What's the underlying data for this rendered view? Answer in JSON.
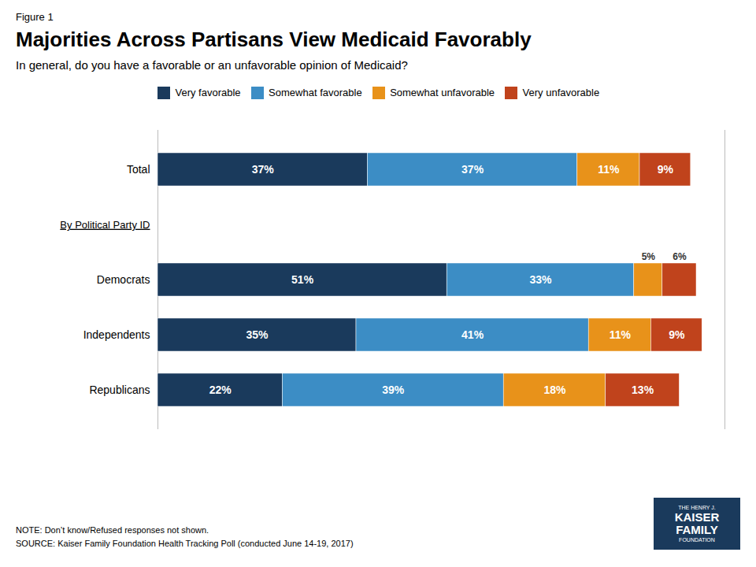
{
  "chart_data": {
    "type": "bar",
    "orientation": "horizontal",
    "stacked": true,
    "data_labels": true,
    "tick_labels": "y",
    "legend": "top",
    "figure_label": "Figure 1",
    "title": "Majorities Across Partisans View Medicaid Favorably",
    "subtitle": "In general, do you have a favorable or an unfavorable opinion of Medicaid?",
    "section_label": "By Political Party ID",
    "note": "NOTE: Don’t know/Refused responses not shown.",
    "source": "SOURCE: Kaiser Family Foundation Health Tracking Poll (conducted June 14-19, 2017)",
    "logo": {
      "lines": [
        "THE HENRY J.",
        "KAISER",
        "FAMILY",
        "FOUNDATION"
      ],
      "color": "#1a3a5c"
    },
    "categories": [
      "Total",
      "Democrats",
      "Independents",
      "Republicans"
    ],
    "series": [
      {
        "name": "Very favorable",
        "color": "#1a3a5c",
        "values": [
          37,
          51,
          35,
          22
        ],
        "value_labels": [
          "37%",
          "51%",
          "35%",
          "22%"
        ]
      },
      {
        "name": "Somewhat favorable",
        "color": "#3c8dc5",
        "values": [
          37,
          33,
          41,
          39
        ],
        "value_labels": [
          "37%",
          "33%",
          "41%",
          "39%"
        ]
      },
      {
        "name": "Somewhat unfavorable",
        "color": "#e8921a",
        "values": [
          11,
          5,
          11,
          18
        ],
        "value_labels": [
          "11%",
          "5%",
          "11%",
          "18%"
        ]
      },
      {
        "name": "Very unfavorable",
        "color": "#c0431c",
        "values": [
          9,
          6,
          9,
          13
        ],
        "value_labels": [
          "9%",
          "6%",
          "9%",
          "13%"
        ]
      }
    ],
    "xlim": [
      0,
      100
    ]
  }
}
